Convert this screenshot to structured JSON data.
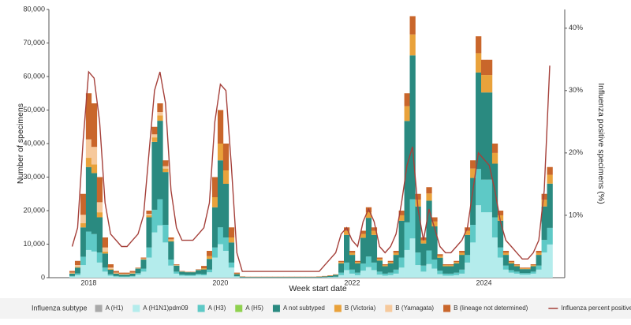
{
  "chart_data": {
    "type": "stacked-bar",
    "x_label": "Week start date",
    "y_label": "Number of specimens",
    "y2_label": "Influenza positive specimens (%)",
    "legend_title": "Influenza subtype",
    "legend": "bottom",
    "grid": false,
    "categories": [
      null,
      null,
      null,
      "2018",
      null,
      null,
      null,
      null,
      null,
      null,
      null,
      null,
      null,
      null,
      null,
      null,
      null,
      null,
      null,
      null,
      null,
      null,
      null,
      null,
      null,
      null,
      null,
      "2020",
      null,
      null,
      null,
      null,
      null,
      null,
      null,
      null,
      null,
      null,
      null,
      null,
      null,
      null,
      null,
      null,
      null,
      null,
      null,
      null,
      null,
      null,
      null,
      "2022",
      null,
      null,
      null,
      null,
      null,
      null,
      null,
      null,
      null,
      null,
      null,
      null,
      null,
      null,
      null,
      null,
      null,
      null,
      null,
      null,
      null,
      null,
      null,
      "2024",
      null,
      null,
      null,
      null,
      null,
      null,
      null,
      null,
      null,
      null,
      null,
      null
    ],
    "ylim": [
      0,
      80000
    ],
    "yticks": [
      0,
      {
        "value": 10000,
        "label": "10,000"
      },
      {
        "value": 20000,
        "label": "20,000"
      },
      {
        "value": 30000,
        "label": "30,000"
      },
      {
        "value": 40000,
        "label": "40,000"
      },
      {
        "value": 50000,
        "label": "50,000"
      },
      {
        "value": 60000,
        "label": "60,000"
      },
      {
        "value": 70000,
        "label": "70,000"
      },
      {
        "value": 80000,
        "label": "80,000"
      }
    ],
    "y2lim": [
      0,
      43
    ],
    "y2ticks": [
      {
        "value": 10,
        "label": "10%"
      },
      {
        "value": 20,
        "label": "20%"
      },
      {
        "value": 30,
        "label": "30%"
      },
      {
        "value": 40,
        "label": "40%"
      }
    ],
    "series": [
      {
        "name": "A (H1)",
        "color": "#a9a9a9",
        "values": [
          0,
          0,
          0,
          0,
          0,
          0,
          0,
          0,
          0,
          0,
          0,
          0,
          0,
          0,
          0,
          0,
          0,
          0,
          0,
          0,
          0,
          0,
          0,
          0,
          0,
          0,
          0,
          0,
          0,
          0,
          0,
          0,
          0,
          0,
          0,
          0,
          0,
          0,
          0,
          0,
          0,
          0,
          0,
          0,
          0,
          0,
          0,
          0,
          0,
          0,
          0,
          0,
          0,
          0,
          0,
          0,
          0,
          0,
          0,
          0,
          0,
          0,
          0,
          0,
          0,
          0,
          0,
          0,
          0,
          0,
          0,
          0,
          0,
          0,
          0,
          0,
          0,
          0,
          0,
          0,
          0,
          0,
          0,
          0,
          0,
          0,
          0,
          0
        ]
      },
      {
        "name": "A (H1N1)pdm09",
        "color": "#b4ecec",
        "values": [
          300,
          750,
          3750,
          8250,
          7800,
          4500,
          1800,
          600,
          300,
          225,
          225,
          300,
          900,
          1800,
          6000,
          13500,
          15600,
          10500,
          3600,
          1200,
          600,
          540,
          540,
          750,
          700,
          1600,
          6000,
          10000,
          8000,
          3000,
          300,
          80,
          60,
          60,
          60,
          60,
          60,
          60,
          60,
          60,
          60,
          60,
          60,
          60,
          60,
          80,
          100,
          140,
          150,
          750,
          2250,
          1200,
          750,
          2100,
          3150,
          2250,
          900,
          600,
          750,
          1200,
          3000,
          8250,
          11700,
          3750,
          1800,
          4050,
          2700,
          1050,
          600,
          600,
          750,
          1200,
          4500,
          10500,
          21600,
          19500,
          19500,
          12000,
          6000,
          2400,
          1500,
          1200,
          900,
          900,
          1200,
          2400,
          7500,
          9900
        ]
      },
      {
        "name": "A (H3)",
        "color": "#5ec9c6",
        "values": [
          200,
          500,
          2500,
          5500,
          5200,
          3000,
          1200,
          400,
          200,
          150,
          150,
          200,
          450,
          900,
          3000,
          6750,
          7800,
          5250,
          1800,
          600,
          300,
          270,
          270,
          375,
          350,
          800,
          3000,
          5000,
          4000,
          1500,
          150,
          40,
          30,
          30,
          30,
          30,
          30,
          30,
          30,
          30,
          30,
          30,
          30,
          30,
          30,
          40,
          50,
          70,
          150,
          750,
          2250,
          1200,
          750,
          2100,
          3150,
          2250,
          900,
          600,
          750,
          1200,
          3000,
          8250,
          11700,
          3750,
          1800,
          4050,
          2700,
          1050,
          600,
          600,
          750,
          1200,
          2250,
          5250,
          10800,
          9750,
          9750,
          6000,
          3000,
          1200,
          750,
          600,
          450,
          450,
          600,
          1200,
          3750,
          4950
        ]
      },
      {
        "name": "A (H5)",
        "color": "#8fd14f",
        "values": [
          0,
          0,
          0,
          0,
          0,
          0,
          0,
          0,
          0,
          0,
          0,
          0,
          0,
          0,
          0,
          0,
          0,
          0,
          0,
          0,
          0,
          0,
          0,
          0,
          0,
          0,
          0,
          0,
          0,
          0,
          0,
          0,
          0,
          0,
          0,
          0,
          0,
          0,
          0,
          0,
          0,
          0,
          0,
          0,
          0,
          0,
          0,
          0,
          0,
          0,
          0,
          0,
          0,
          0,
          0,
          0,
          0,
          0,
          0,
          0,
          0,
          0,
          0,
          0,
          0,
          0,
          0,
          0,
          0,
          0,
          0,
          0,
          0,
          0,
          0,
          0,
          0,
          0,
          0,
          0,
          0,
          0,
          0,
          0,
          0,
          0,
          0,
          0
        ]
      },
      {
        "name": "A not subtyped",
        "color": "#2a8a80",
        "values": [
          700,
          1750,
          8750,
          19250,
          18200,
          10500,
          4200,
          1400,
          700,
          525,
          525,
          700,
          1350,
          2700,
          9000,
          20250,
          23400,
          15750,
          5400,
          1800,
          900,
          810,
          810,
          1125,
          1400,
          3200,
          12000,
          20000,
          16000,
          6000,
          600,
          160,
          120,
          120,
          120,
          120,
          120,
          120,
          120,
          120,
          120,
          120,
          120,
          120,
          120,
          160,
          200,
          280,
          550,
          2750,
          8250,
          4400,
          2750,
          7700,
          11550,
          8250,
          3300,
          2200,
          2750,
          4400,
          11000,
          30250,
          42900,
          13750,
          6600,
          14850,
          9900,
          3850,
          2200,
          2200,
          2750,
          4400,
          6000,
          14000,
          28800,
          26000,
          26000,
          16000,
          8000,
          3200,
          2000,
          1600,
          1200,
          1200,
          1600,
          3200,
          10000,
          13200
        ]
      },
      {
        "name": "B (Victoria)",
        "color": "#e9a23b",
        "values": [
          100,
          250,
          1250,
          2750,
          2600,
          1500,
          600,
          200,
          100,
          75,
          75,
          100,
          90,
          180,
          600,
          1350,
          1560,
          1050,
          360,
          120,
          60,
          54,
          54,
          75,
          350,
          800,
          3000,
          5000,
          4000,
          1500,
          150,
          40,
          30,
          30,
          30,
          30,
          30,
          30,
          30,
          30,
          30,
          30,
          30,
          30,
          30,
          40,
          50,
          70,
          80,
          400,
          1200,
          640,
          400,
          1120,
          1680,
          1200,
          480,
          320,
          400,
          640,
          1600,
          4400,
          6240,
          2000,
          960,
          2160,
          1440,
          560,
          320,
          320,
          400,
          640,
          1200,
          2800,
          5760,
          5200,
          5200,
          3200,
          1600,
          640,
          400,
          320,
          240,
          240,
          320,
          640,
          2000,
          2640
        ]
      },
      {
        "name": "B (Yamagata)",
        "color": "#f6c99c",
        "values": [
          200,
          500,
          2500,
          5500,
          5200,
          3000,
          1200,
          400,
          200,
          150,
          150,
          200,
          60,
          120,
          400,
          900,
          1040,
          700,
          240,
          80,
          40,
          36,
          36,
          50,
          0,
          0,
          0,
          0,
          0,
          0,
          0,
          0,
          0,
          0,
          0,
          0,
          0,
          0,
          0,
          0,
          0,
          0,
          0,
          0,
          0,
          0,
          0,
          0,
          0,
          0,
          0,
          0,
          0,
          0,
          0,
          0,
          0,
          0,
          0,
          0,
          0,
          0,
          0,
          0,
          0,
          0,
          0,
          0,
          0,
          0,
          0,
          0,
          0,
          0,
          0,
          0,
          0,
          0,
          0,
          0,
          0,
          0,
          0,
          0,
          0,
          0,
          0,
          0
        ]
      },
      {
        "name": "B (lineage not determined)",
        "color": "#c9662b",
        "values": [
          500,
          1250,
          6250,
          13750,
          13000,
          7500,
          3000,
          1000,
          500,
          375,
          375,
          500,
          150,
          300,
          1000,
          2250,
          2600,
          1750,
          600,
          200,
          100,
          90,
          90,
          125,
          700,
          1600,
          6000,
          10000,
          8000,
          3000,
          300,
          80,
          60,
          60,
          60,
          60,
          60,
          60,
          60,
          60,
          60,
          60,
          60,
          60,
          60,
          80,
          100,
          140,
          70,
          350,
          1050,
          560,
          350,
          980,
          1470,
          1050,
          420,
          280,
          350,
          560,
          1400,
          3850,
          5460,
          1750,
          840,
          1890,
          1260,
          490,
          280,
          280,
          350,
          560,
          1050,
          2450,
          5040,
          4550,
          4550,
          2800,
          1400,
          560,
          350,
          280,
          210,
          210,
          280,
          560,
          1750,
          2310
        ]
      },
      {
        "name": "Influenza percent positive",
        "color": "#a5403a",
        "type": "line",
        "axis": "y2",
        "values": [
          5,
          8,
          22,
          33,
          32,
          25,
          12,
          7,
          6,
          5,
          5,
          6,
          7,
          10,
          20,
          30,
          33,
          28,
          14,
          8,
          6,
          6,
          6,
          7,
          8,
          12,
          25,
          31,
          30,
          18,
          4,
          1,
          1,
          1,
          1,
          1,
          1,
          1,
          1,
          1,
          1,
          1,
          1,
          1,
          1,
          1,
          2,
          3,
          4,
          7,
          8,
          6,
          5,
          9,
          11,
          9,
          5,
          4,
          5,
          7,
          12,
          18,
          21,
          11,
          6,
          11,
          8,
          5,
          4,
          4,
          5,
          6,
          8,
          14,
          20,
          19,
          18,
          14,
          9,
          6,
          5,
          4,
          3,
          3,
          4,
          6,
          14,
          34
        ]
      }
    ]
  }
}
